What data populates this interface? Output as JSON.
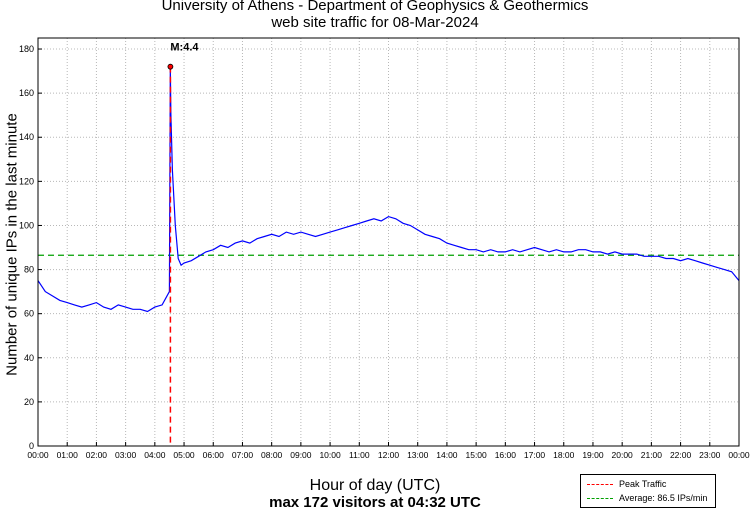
{
  "chart_data": {
    "type": "line",
    "title": "University of Athens - Department of Geophysics & Geothermics",
    "subtitle": "web site traffic for 08-Mar-2024",
    "xlabel": "Hour of day (UTC)",
    "ylabel": "Number of unique IPs in the last minute",
    "footer": "max 172 visitors at 04:32 UTC",
    "xlim": [
      0,
      24
    ],
    "ylim": [
      0,
      185
    ],
    "yticks": [
      0,
      20,
      40,
      60,
      80,
      100,
      120,
      140,
      160,
      180
    ],
    "xticks": [
      "00:00",
      "01:00",
      "02:00",
      "03:00",
      "04:00",
      "05:00",
      "06:00",
      "07:00",
      "08:00",
      "09:00",
      "10:00",
      "11:00",
      "12:00",
      "13:00",
      "14:00",
      "15:00",
      "16:00",
      "17:00",
      "18:00",
      "19:00",
      "20:00",
      "21:00",
      "22:00",
      "23:00",
      "00:00"
    ],
    "grid": true,
    "legend_position": "bottom-right",
    "series": [
      {
        "color": "#0000ff",
        "x": [
          0.0,
          0.25,
          0.5,
          0.75,
          1.0,
          1.25,
          1.5,
          1.75,
          2.0,
          2.25,
          2.5,
          2.75,
          3.0,
          3.25,
          3.5,
          3.75,
          4.0,
          4.25,
          4.5,
          4.53,
          4.55,
          4.6,
          4.7,
          4.8,
          4.9,
          5.0,
          5.25,
          5.5,
          5.75,
          6.0,
          6.25,
          6.5,
          6.75,
          7.0,
          7.25,
          7.5,
          7.75,
          8.0,
          8.25,
          8.5,
          8.75,
          9.0,
          9.25,
          9.5,
          9.75,
          10.0,
          10.25,
          10.5,
          10.75,
          11.0,
          11.25,
          11.5,
          11.75,
          12.0,
          12.25,
          12.5,
          12.75,
          13.0,
          13.25,
          13.5,
          13.75,
          14.0,
          14.25,
          14.5,
          14.75,
          15.0,
          15.25,
          15.5,
          15.75,
          16.0,
          16.25,
          16.5,
          16.75,
          17.0,
          17.25,
          17.5,
          17.75,
          18.0,
          18.25,
          18.5,
          18.75,
          19.0,
          19.25,
          19.5,
          19.75,
          20.0,
          20.25,
          20.5,
          20.75,
          21.0,
          21.25,
          21.5,
          21.75,
          22.0,
          22.25,
          22.5,
          22.75,
          23.0,
          23.25,
          23.5,
          23.75,
          24.0
        ],
        "y": [
          75,
          70,
          68,
          66,
          65,
          64,
          63,
          64,
          65,
          63,
          62,
          64,
          63,
          62,
          62,
          61,
          63,
          64,
          70,
          172,
          150,
          125,
          100,
          85,
          82,
          83,
          84,
          86,
          88,
          89,
          91,
          90,
          92,
          93,
          92,
          94,
          95,
          96,
          95,
          97,
          96,
          97,
          96,
          95,
          96,
          97,
          98,
          99,
          100,
          101,
          102,
          103,
          102,
          104,
          103,
          101,
          100,
          98,
          96,
          95,
          94,
          92,
          91,
          90,
          89,
          89,
          88,
          89,
          88,
          88,
          89,
          88,
          89,
          90,
          89,
          88,
          89,
          88,
          88,
          89,
          89,
          88,
          88,
          87,
          88,
          87,
          87,
          87,
          86,
          86,
          86,
          85,
          85,
          84,
          85,
          84,
          83,
          82,
          81,
          80,
          79,
          75
        ]
      }
    ],
    "peak": {
      "x": 4.533,
      "y": 172,
      "annotation": "M:4.4",
      "color": "#ff0000"
    },
    "average": {
      "y": 86.5,
      "color": "#00a000"
    },
    "legend": [
      {
        "label": "Peak Traffic",
        "color": "#ff0000"
      },
      {
        "label": "Average: 86.5 IPs/min",
        "color": "#00a000"
      }
    ]
  }
}
